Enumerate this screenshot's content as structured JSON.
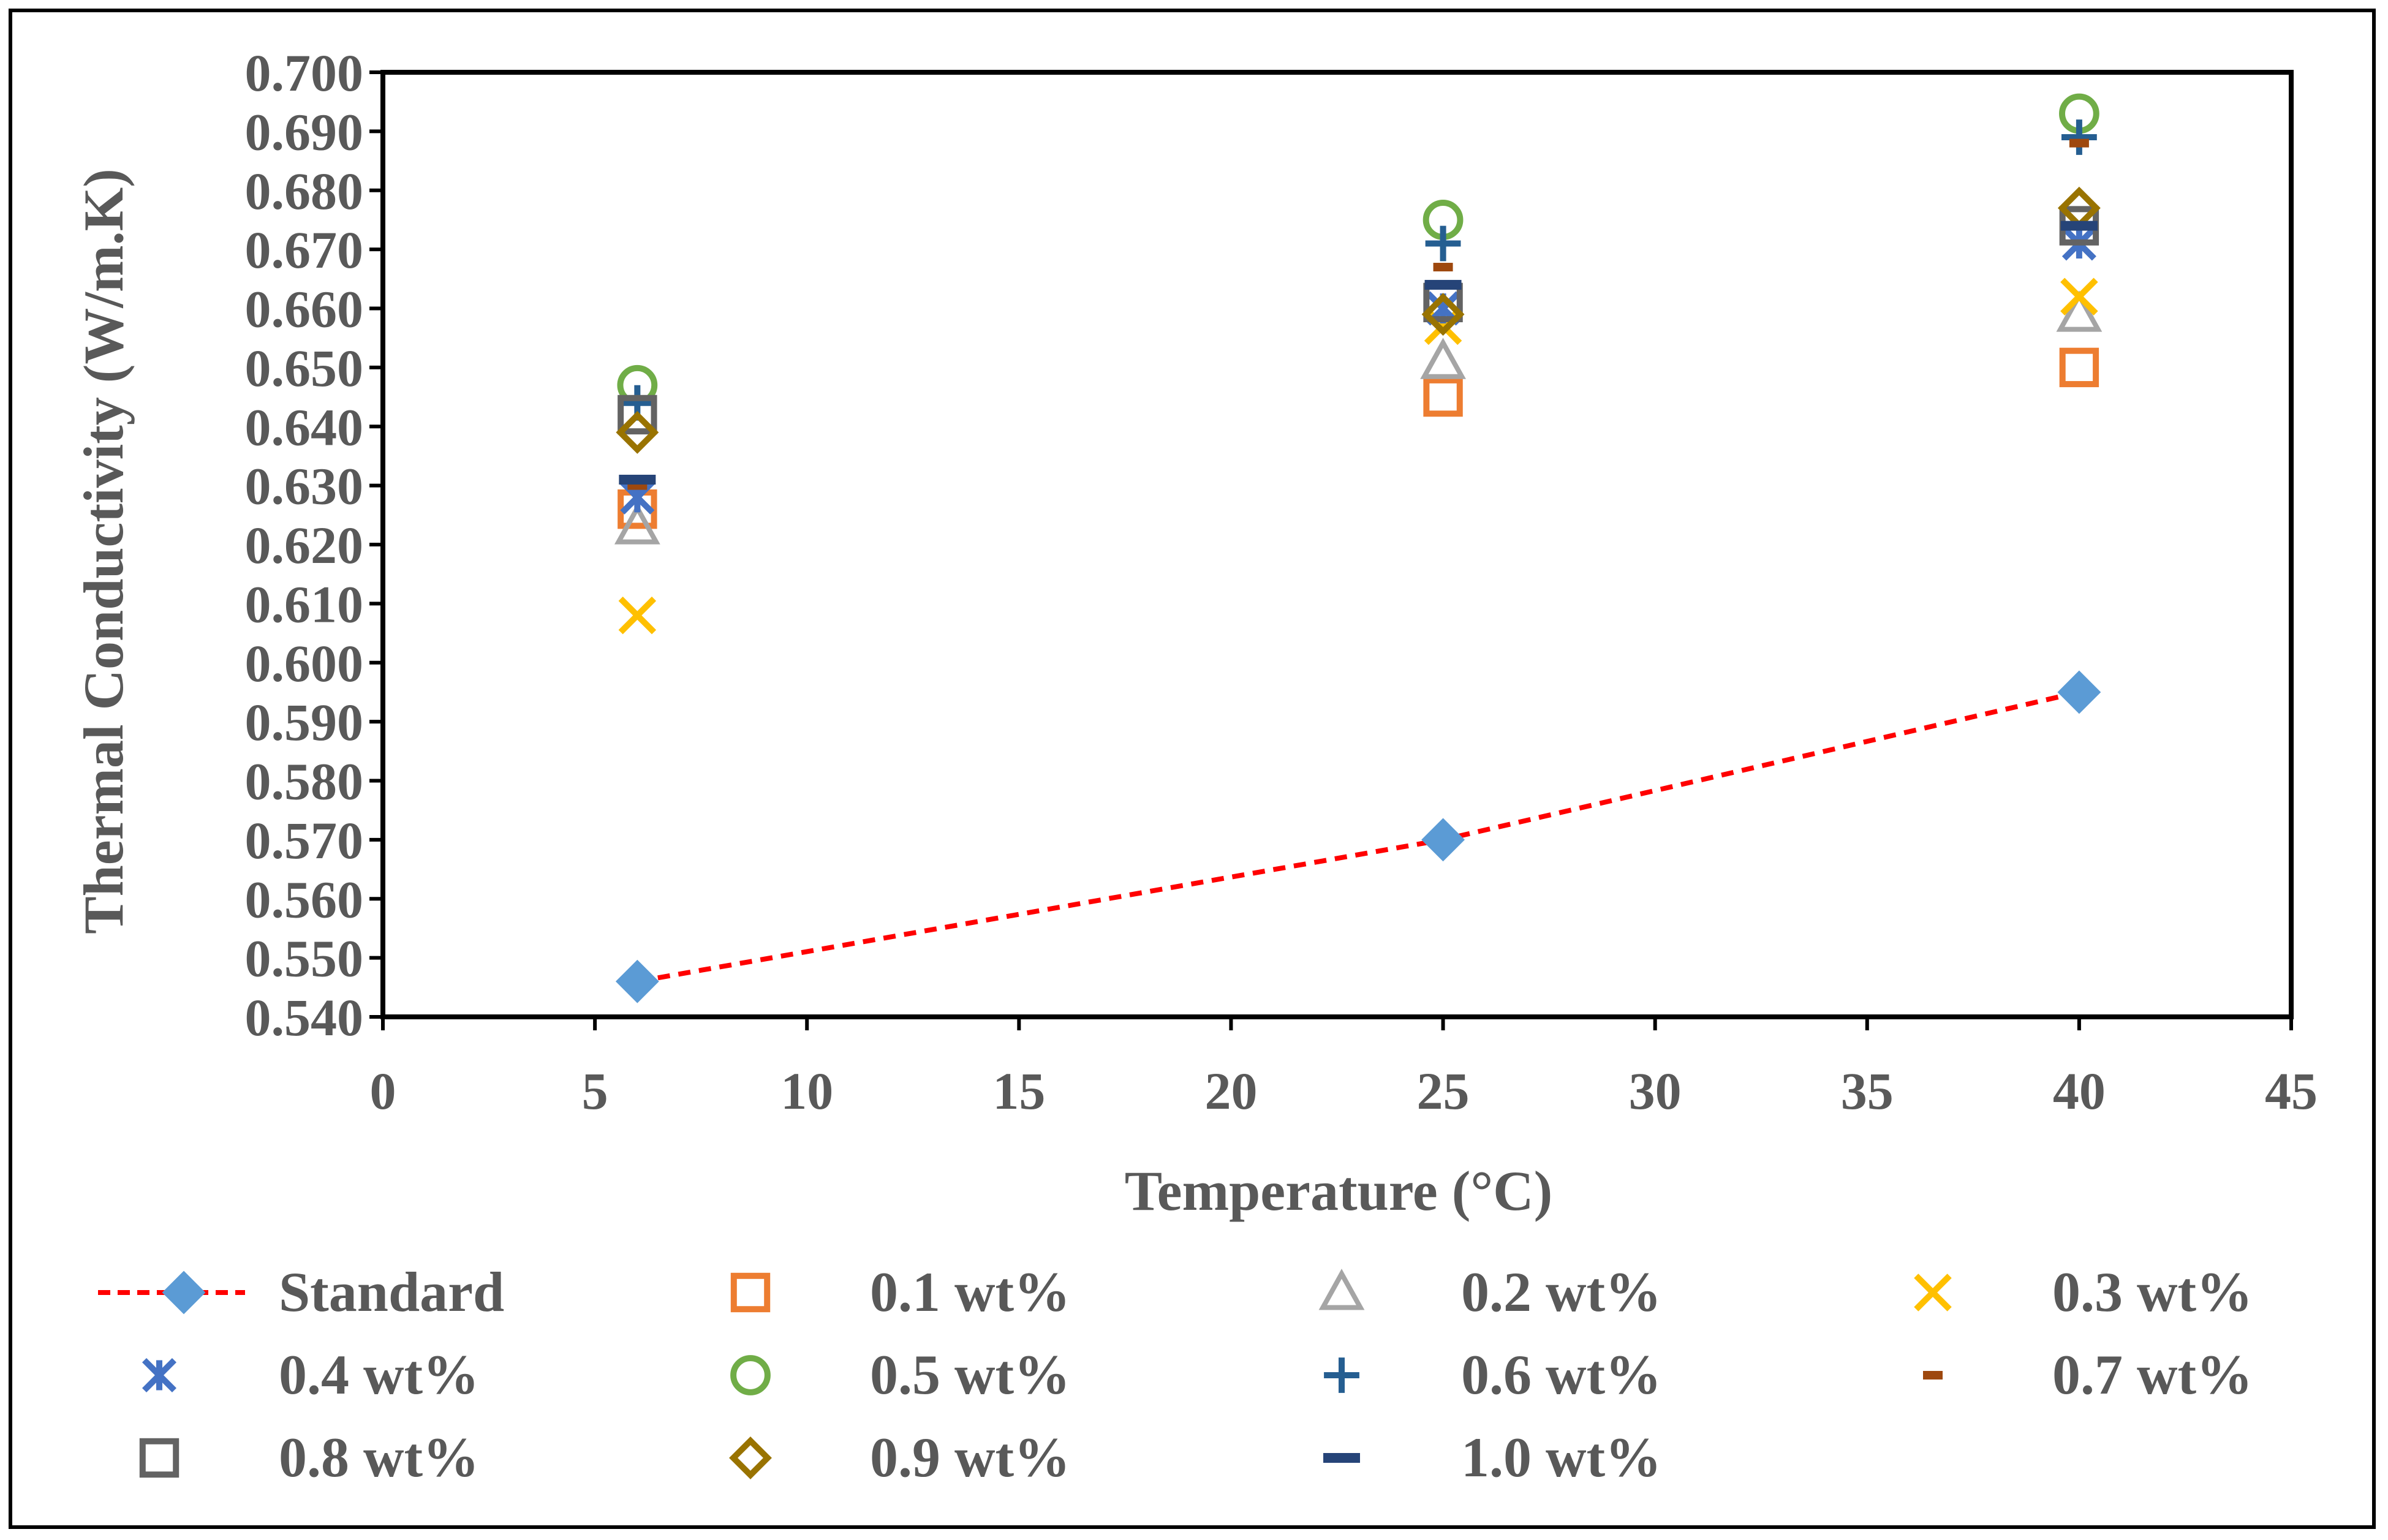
{
  "chart_data": {
    "type": "scatter",
    "title": "",
    "xlabel": "Temperature (°C)",
    "ylabel": "Thermal Conductivity (W/m.K)",
    "xlim": [
      0,
      45
    ],
    "ylim": [
      0.54,
      0.7
    ],
    "x_ticks": [
      0,
      5,
      10,
      15,
      20,
      25,
      30,
      35,
      40,
      45
    ],
    "x_tick_labels": [
      "0",
      "5",
      "10",
      "15",
      "20",
      "25",
      "30",
      "35",
      "40",
      "45"
    ],
    "y_ticks": [
      0.54,
      0.55,
      0.56,
      0.57,
      0.58,
      0.59,
      0.6,
      0.61,
      0.62,
      0.63,
      0.64,
      0.65,
      0.66,
      0.67,
      0.68,
      0.69,
      0.7
    ],
    "y_tick_labels": [
      "0.540",
      "0.550",
      "0.560",
      "0.570",
      "0.580",
      "0.590",
      "0.600",
      "0.610",
      "0.620",
      "0.630",
      "0.640",
      "0.650",
      "0.660",
      "0.670",
      "0.680",
      "0.690",
      "0.700"
    ],
    "grid": false,
    "legend_position": "bottom",
    "series": [
      {
        "name": "Standard",
        "marker": "diamond-filled",
        "line": "dashed",
        "color": "#5B9BD5",
        "line_color": "#FF0000",
        "x": [
          6,
          25,
          40
        ],
        "y": [
          0.546,
          0.57,
          0.595
        ]
      },
      {
        "name": "0.1 wt%",
        "marker": "square",
        "color": "#ED7D31",
        "x": [
          6,
          25,
          40
        ],
        "y": [
          0.626,
          0.645,
          0.65
        ]
      },
      {
        "name": "0.2 wt%",
        "marker": "triangle",
        "color": "#A5A5A5",
        "x": [
          6,
          25,
          40
        ],
        "y": [
          0.623,
          0.651,
          0.659
        ]
      },
      {
        "name": "0.3 wt%",
        "marker": "x",
        "color": "#FFC000",
        "x": [
          6,
          25,
          40
        ],
        "y": [
          0.608,
          0.657,
          0.662
        ]
      },
      {
        "name": "0.4 wt%",
        "marker": "asterisk",
        "color": "#4472C4",
        "x": [
          6,
          25,
          40
        ],
        "y": [
          0.628,
          0.66,
          0.671
        ]
      },
      {
        "name": "0.5 wt%",
        "marker": "circle",
        "color": "#70AD47",
        "x": [
          6,
          25,
          40
        ],
        "y": [
          0.647,
          0.675,
          0.693
        ]
      },
      {
        "name": "0.6 wt%",
        "marker": "plus",
        "color": "#255E91",
        "x": [
          6,
          25,
          40
        ],
        "y": [
          0.644,
          0.671,
          0.689
        ]
      },
      {
        "name": "0.7 wt%",
        "marker": "short-dash",
        "color": "#9E480E",
        "x": [
          6,
          25,
          40
        ],
        "y": [
          0.63,
          0.667,
          0.688
        ]
      },
      {
        "name": "0.8 wt%",
        "marker": "square",
        "color": "#636363",
        "x": [
          6,
          25,
          40
        ],
        "y": [
          0.642,
          0.661,
          0.674
        ]
      },
      {
        "name": "0.9 wt%",
        "marker": "diamond",
        "color": "#997300",
        "x": [
          6,
          25,
          40
        ],
        "y": [
          0.639,
          0.659,
          0.677
        ]
      },
      {
        "name": "1.0 wt%",
        "marker": "dash",
        "color": "#264478",
        "x": [
          6,
          25,
          40
        ],
        "y": [
          0.631,
          0.664,
          0.674
        ]
      }
    ]
  }
}
